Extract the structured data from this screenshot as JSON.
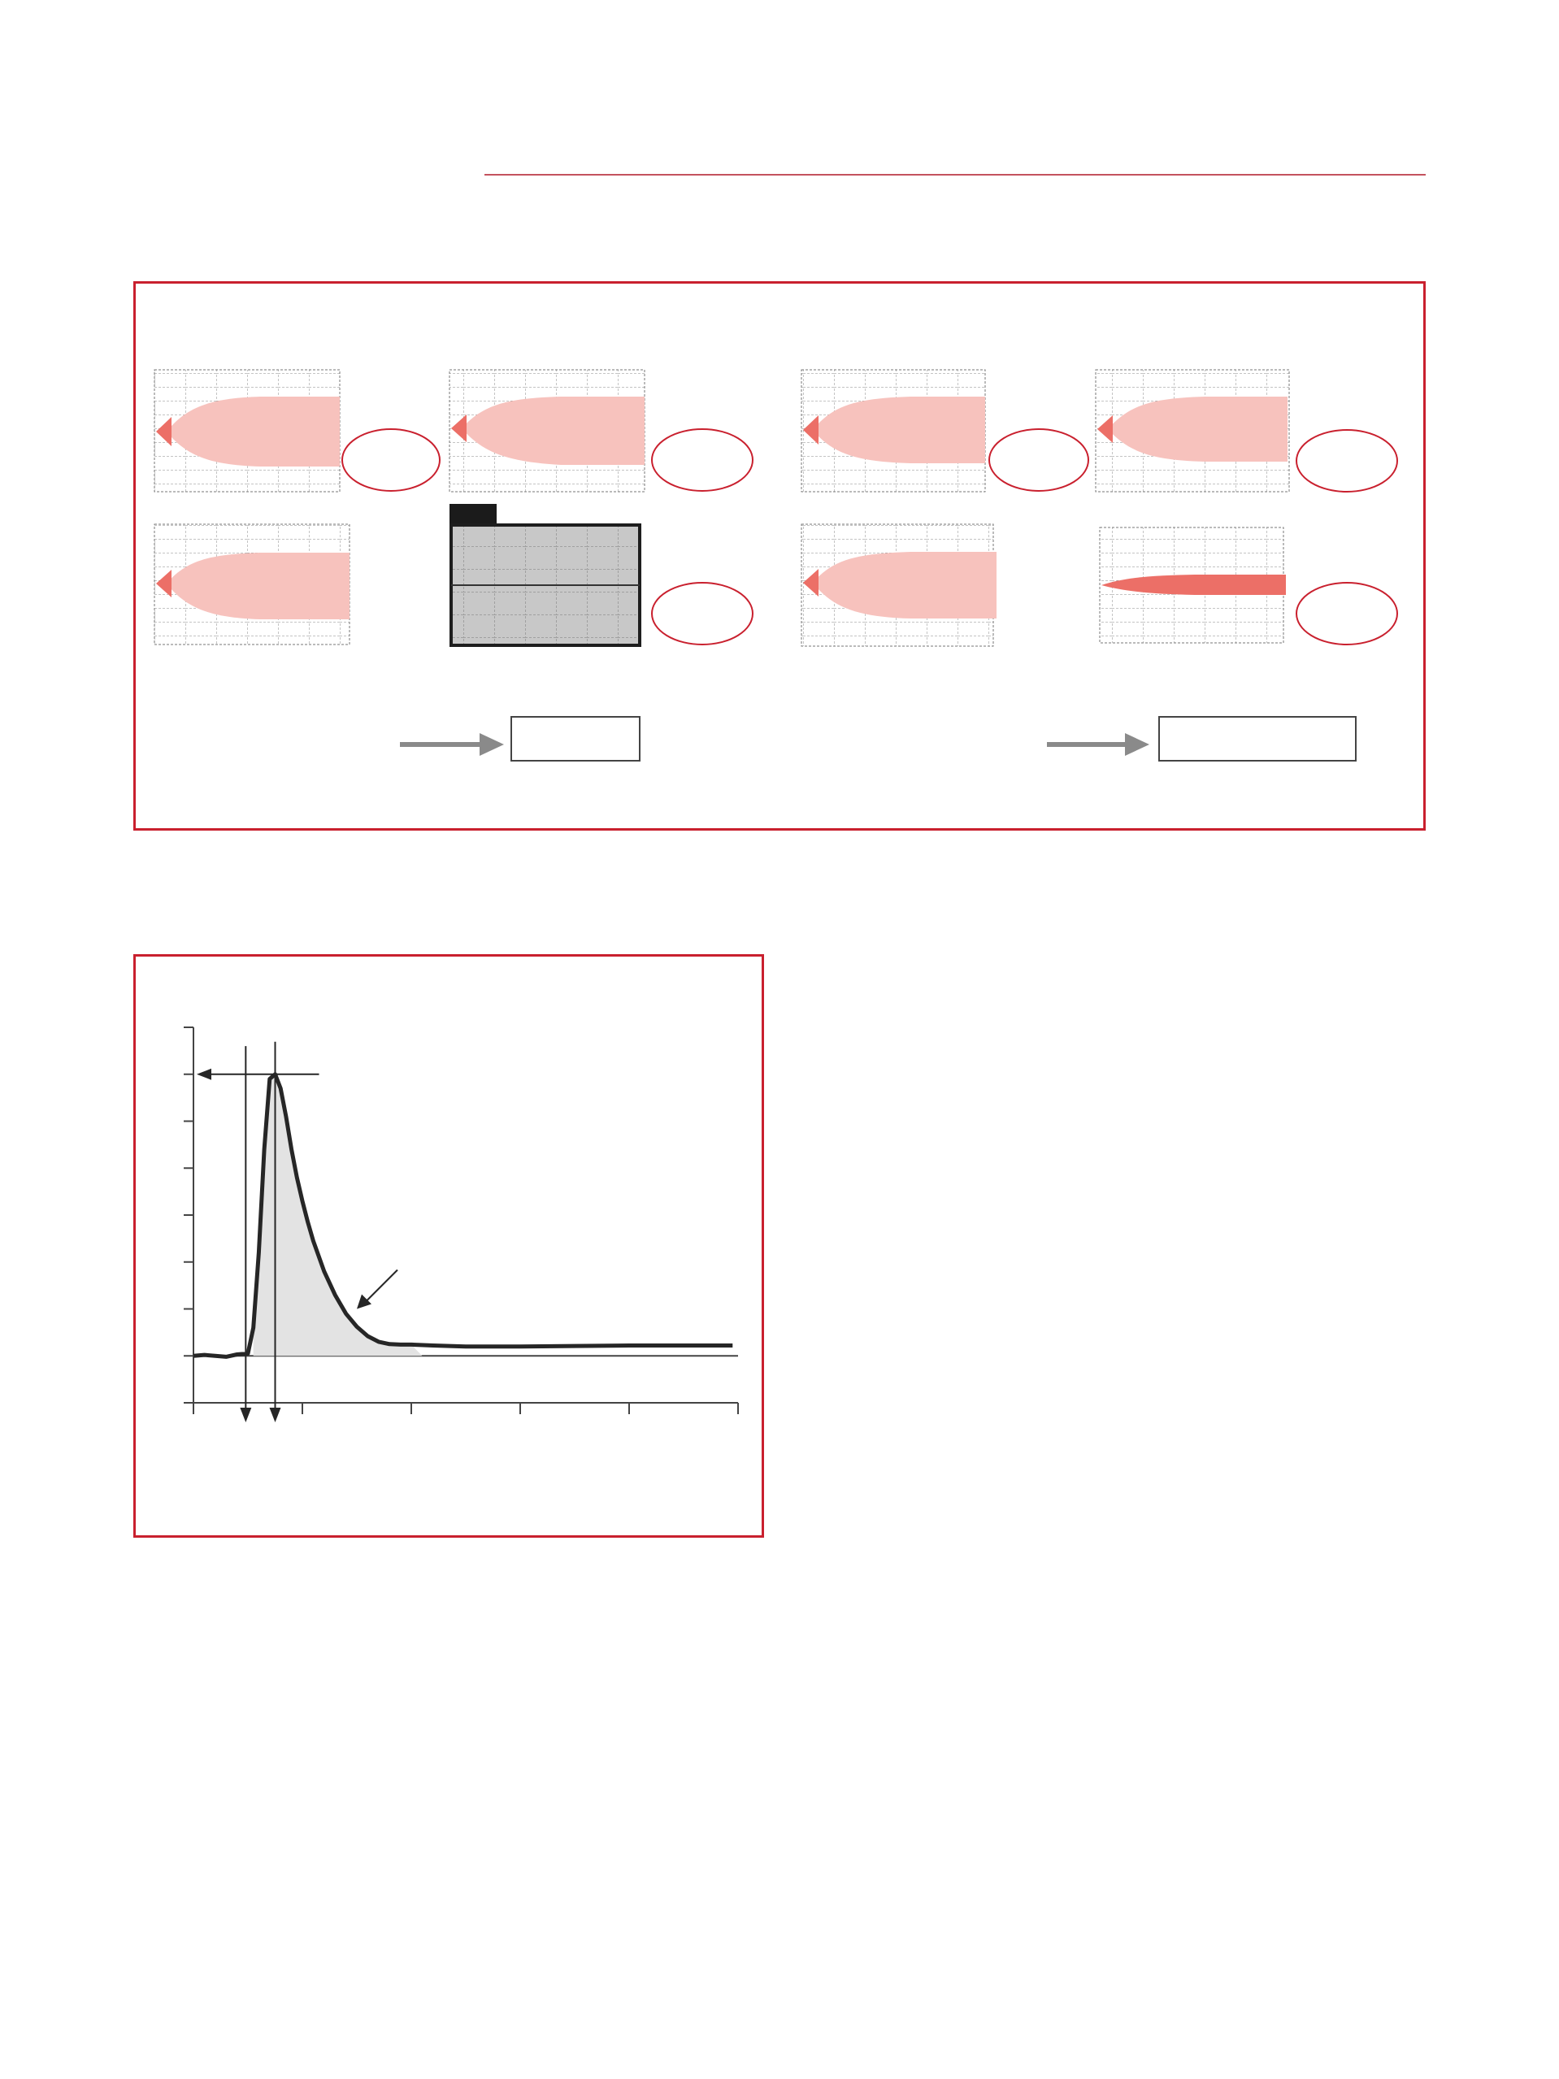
{
  "colors": {
    "accent_red": "#c9202e",
    "rule_red": "#c4525e",
    "pale_fill": "#f7c2bd",
    "strong_fill": "#ec6f67",
    "gray_panel": "#c8c8c8",
    "gray_arrow": "#8a8a8a",
    "area_fill": "#e3e3e3",
    "curve": "#262626"
  },
  "icons": {
    "flow_arrow": "right-arrow-icon",
    "label_marker": "ellipse-marker"
  },
  "chart_data": {
    "type": "line",
    "title": "",
    "xlabel": "",
    "ylabel": "",
    "grid": false,
    "legend": "none",
    "xlim": [
      0,
      5
    ],
    "ylim": [
      -1,
      7
    ],
    "x": [
      0.0,
      0.1,
      0.2,
      0.3,
      0.4,
      0.5,
      0.55,
      0.6,
      0.65,
      0.7,
      0.75,
      0.8,
      0.85,
      0.9,
      0.95,
      1.0,
      1.05,
      1.1,
      1.2,
      1.3,
      1.4,
      1.5,
      1.6,
      1.7,
      1.8,
      1.9,
      2.0,
      2.2,
      2.5,
      3.0,
      3.5,
      4.0,
      4.5,
      4.95
    ],
    "series": [
      {
        "values": [
          0.0,
          0.02,
          0.0,
          -0.02,
          0.03,
          0.05,
          0.6,
          2.2,
          4.4,
          5.9,
          6.0,
          5.7,
          5.1,
          4.4,
          3.8,
          3.3,
          2.85,
          2.45,
          1.8,
          1.3,
          0.9,
          0.62,
          0.42,
          0.3,
          0.25,
          0.24,
          0.24,
          0.22,
          0.2,
          0.2,
          0.21,
          0.22,
          0.22,
          0.22
        ]
      }
    ]
  }
}
